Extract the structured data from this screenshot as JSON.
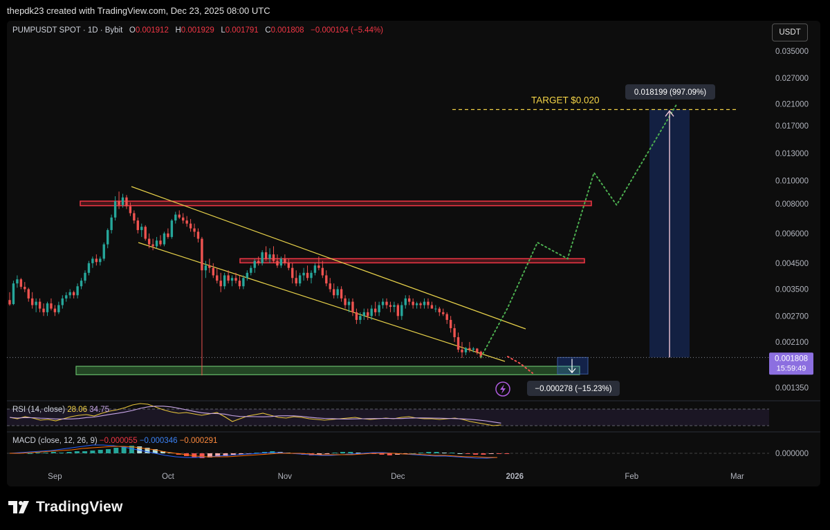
{
  "header": {
    "credit": "thepdk23 created with TradingView.com, Dec 23, 2025 08:00 UTC"
  },
  "legend": {
    "symbol": "PUMPUSDT SPOT · 1D · Bybit",
    "o_label": "O",
    "o": "0.001912",
    "h_label": "H",
    "h": "0.001929",
    "l_label": "L",
    "l": "0.001791",
    "c_label": "C",
    "c": "0.001808",
    "change": "−0.000104 (−5.44%)"
  },
  "currency_button": "USDT",
  "chart_data": {
    "type": "candlestick",
    "symbol": "PUMPUSDT",
    "interval": "1D",
    "exchange": "Bybit",
    "y_scale": "log",
    "y_ticks": [
      "0.035000",
      "0.027000",
      "0.021000",
      "0.017000",
      "0.013000",
      "0.010000",
      "0.008000",
      "0.006000",
      "0.004500",
      "0.003500",
      "0.002700",
      "0.002100",
      "0.001350"
    ],
    "x_ticks": [
      "Sep",
      "Oct",
      "Nov",
      "Dec",
      "2026",
      "Feb",
      "Mar"
    ],
    "last_price": {
      "value": "0.001808",
      "countdown": "15:59:49"
    },
    "annotations": {
      "target_label": "TARGET $0.020",
      "target_level": 0.0199,
      "gain_label": "0.018199 (997.09%)",
      "loss_label": "−0.000278 (−15.23%)",
      "resistance_zones": [
        [
          0.00785,
          0.0082
        ],
        [
          0.00455,
          0.0047
        ]
      ],
      "support_zone": [
        0.00153,
        0.00166
      ]
    },
    "candles": [
      {
        "date": "2025-08-20",
        "o": 0.00315,
        "h": 0.0034,
        "l": 0.00298,
        "c": 0.00302
      },
      {
        "date": "2025-08-21",
        "o": 0.00303,
        "h": 0.0038,
        "l": 0.003,
        "c": 0.0037
      },
      {
        "date": "2025-08-22",
        "o": 0.0037,
        "h": 0.004,
        "l": 0.00355,
        "c": 0.00385
      },
      {
        "date": "2025-08-23",
        "o": 0.00385,
        "h": 0.0039,
        "l": 0.0035,
        "c": 0.00358
      },
      {
        "date": "2025-08-24",
        "o": 0.00358,
        "h": 0.00375,
        "l": 0.0034,
        "c": 0.0035
      },
      {
        "date": "2025-08-25",
        "o": 0.0035,
        "h": 0.00355,
        "l": 0.0031,
        "c": 0.0032
      },
      {
        "date": "2025-08-26",
        "o": 0.0032,
        "h": 0.0034,
        "l": 0.0029,
        "c": 0.003
      },
      {
        "date": "2025-08-27",
        "o": 0.003,
        "h": 0.0032,
        "l": 0.0028,
        "c": 0.0031
      },
      {
        "date": "2025-08-28",
        "o": 0.0031,
        "h": 0.0032,
        "l": 0.0028,
        "c": 0.0029
      },
      {
        "date": "2025-08-29",
        "o": 0.0029,
        "h": 0.00305,
        "l": 0.0027,
        "c": 0.0028
      },
      {
        "date": "2025-08-30",
        "o": 0.0028,
        "h": 0.0031,
        "l": 0.0027,
        "c": 0.00305
      },
      {
        "date": "2025-08-31",
        "o": 0.00305,
        "h": 0.0032,
        "l": 0.00285,
        "c": 0.0029
      },
      {
        "date": "2025-09-01",
        "o": 0.0029,
        "h": 0.003,
        "l": 0.0027,
        "c": 0.0028
      },
      {
        "date": "2025-09-02",
        "o": 0.0028,
        "h": 0.0031,
        "l": 0.00275,
        "c": 0.003
      },
      {
        "date": "2025-09-03",
        "o": 0.003,
        "h": 0.0033,
        "l": 0.0029,
        "c": 0.0032
      },
      {
        "date": "2025-09-04",
        "o": 0.0032,
        "h": 0.0034,
        "l": 0.0031,
        "c": 0.0033
      },
      {
        "date": "2025-09-05",
        "o": 0.0033,
        "h": 0.0035,
        "l": 0.0032,
        "c": 0.0034
      },
      {
        "date": "2025-09-06",
        "o": 0.0034,
        "h": 0.00345,
        "l": 0.0032,
        "c": 0.0033
      },
      {
        "date": "2025-09-07",
        "o": 0.0033,
        "h": 0.0037,
        "l": 0.0032,
        "c": 0.0036
      },
      {
        "date": "2025-09-08",
        "o": 0.0036,
        "h": 0.0039,
        "l": 0.0035,
        "c": 0.0038
      },
      {
        "date": "2025-09-09",
        "o": 0.0038,
        "h": 0.0042,
        "l": 0.0037,
        "c": 0.0041
      },
      {
        "date": "2025-09-10",
        "o": 0.0041,
        "h": 0.0046,
        "l": 0.004,
        "c": 0.0045
      },
      {
        "date": "2025-09-11",
        "o": 0.0045,
        "h": 0.0048,
        "l": 0.0043,
        "c": 0.0047
      },
      {
        "date": "2025-09-12",
        "o": 0.0047,
        "h": 0.0049,
        "l": 0.0044,
        "c": 0.00455
      },
      {
        "date": "2025-09-13",
        "o": 0.00455,
        "h": 0.0048,
        "l": 0.0044,
        "c": 0.0047
      },
      {
        "date": "2025-09-14",
        "o": 0.0047,
        "h": 0.0055,
        "l": 0.0046,
        "c": 0.0054
      },
      {
        "date": "2025-09-15",
        "o": 0.0054,
        "h": 0.0063,
        "l": 0.0052,
        "c": 0.0062
      },
      {
        "date": "2025-09-16",
        "o": 0.0062,
        "h": 0.0072,
        "l": 0.006,
        "c": 0.007
      },
      {
        "date": "2025-09-17",
        "o": 0.007,
        "h": 0.0086,
        "l": 0.0068,
        "c": 0.0082
      },
      {
        "date": "2025-09-18",
        "o": 0.0082,
        "h": 0.009,
        "l": 0.0076,
        "c": 0.0079
      },
      {
        "date": "2025-09-19",
        "o": 0.0079,
        "h": 0.0088,
        "l": 0.0077,
        "c": 0.0085
      },
      {
        "date": "2025-09-20",
        "o": 0.0085,
        "h": 0.0087,
        "l": 0.0076,
        "c": 0.0078
      },
      {
        "date": "2025-09-21",
        "o": 0.0078,
        "h": 0.0081,
        "l": 0.0071,
        "c": 0.0073
      },
      {
        "date": "2025-09-22",
        "o": 0.0073,
        "h": 0.0075,
        "l": 0.0066,
        "c": 0.0068
      },
      {
        "date": "2025-09-23",
        "o": 0.0068,
        "h": 0.007,
        "l": 0.006,
        "c": 0.0062
      },
      {
        "date": "2025-09-24",
        "o": 0.0062,
        "h": 0.0066,
        "l": 0.0058,
        "c": 0.0064
      },
      {
        "date": "2025-09-25",
        "o": 0.0064,
        "h": 0.0065,
        "l": 0.0056,
        "c": 0.0057
      },
      {
        "date": "2025-09-26",
        "o": 0.0057,
        "h": 0.006,
        "l": 0.0052,
        "c": 0.0054
      },
      {
        "date": "2025-09-27",
        "o": 0.0054,
        "h": 0.0057,
        "l": 0.0051,
        "c": 0.0053
      },
      {
        "date": "2025-09-28",
        "o": 0.0053,
        "h": 0.0058,
        "l": 0.0052,
        "c": 0.0056
      },
      {
        "date": "2025-09-29",
        "o": 0.0056,
        "h": 0.0059,
        "l": 0.0053,
        "c": 0.0054
      },
      {
        "date": "2025-09-30",
        "o": 0.0054,
        "h": 0.0061,
        "l": 0.0053,
        "c": 0.006
      },
      {
        "date": "2025-10-01",
        "o": 0.006,
        "h": 0.0063,
        "l": 0.0057,
        "c": 0.0058
      },
      {
        "date": "2025-10-02",
        "o": 0.0058,
        "h": 0.0069,
        "l": 0.0057,
        "c": 0.0068
      },
      {
        "date": "2025-10-03",
        "o": 0.0068,
        "h": 0.0074,
        "l": 0.0066,
        "c": 0.0072
      },
      {
        "date": "2025-10-04",
        "o": 0.0072,
        "h": 0.0075,
        "l": 0.0069,
        "c": 0.007
      },
      {
        "date": "2025-10-05",
        "o": 0.007,
        "h": 0.0073,
        "l": 0.0066,
        "c": 0.0068
      },
      {
        "date": "2025-10-06",
        "o": 0.0068,
        "h": 0.0071,
        "l": 0.0064,
        "c": 0.0066
      },
      {
        "date": "2025-10-07",
        "o": 0.0066,
        "h": 0.0069,
        "l": 0.0061,
        "c": 0.0063
      },
      {
        "date": "2025-10-08",
        "o": 0.0063,
        "h": 0.0066,
        "l": 0.0058,
        "c": 0.0061
      },
      {
        "date": "2025-10-09",
        "o": 0.0061,
        "h": 0.0063,
        "l": 0.0055,
        "c": 0.0057
      },
      {
        "date": "2025-10-10",
        "o": 0.0057,
        "h": 0.0058,
        "l": 0.00152,
        "c": 0.0042
      },
      {
        "date": "2025-10-11",
        "o": 0.0042,
        "h": 0.0046,
        "l": 0.0039,
        "c": 0.0044
      },
      {
        "date": "2025-10-12",
        "o": 0.0044,
        "h": 0.0047,
        "l": 0.0041,
        "c": 0.0043
      },
      {
        "date": "2025-10-13",
        "o": 0.0043,
        "h": 0.0045,
        "l": 0.0039,
        "c": 0.004
      },
      {
        "date": "2025-10-14",
        "o": 0.004,
        "h": 0.0043,
        "l": 0.0037,
        "c": 0.0038
      },
      {
        "date": "2025-10-15",
        "o": 0.0038,
        "h": 0.0041,
        "l": 0.0034,
        "c": 0.0036
      },
      {
        "date": "2025-10-16",
        "o": 0.0036,
        "h": 0.0041,
        "l": 0.0035,
        "c": 0.004
      },
      {
        "date": "2025-10-17",
        "o": 0.004,
        "h": 0.0042,
        "l": 0.0037,
        "c": 0.0038
      },
      {
        "date": "2025-10-18",
        "o": 0.0038,
        "h": 0.004,
        "l": 0.0036,
        "c": 0.0039
      },
      {
        "date": "2025-10-19",
        "o": 0.0039,
        "h": 0.0041,
        "l": 0.0037,
        "c": 0.0038
      },
      {
        "date": "2025-10-20",
        "o": 0.0038,
        "h": 0.004,
        "l": 0.0035,
        "c": 0.0036
      },
      {
        "date": "2025-10-21",
        "o": 0.0036,
        "h": 0.004,
        "l": 0.0035,
        "c": 0.0039
      },
      {
        "date": "2025-10-22",
        "o": 0.0039,
        "h": 0.0042,
        "l": 0.0038,
        "c": 0.0041
      },
      {
        "date": "2025-10-23",
        "o": 0.0041,
        "h": 0.0044,
        "l": 0.004,
        "c": 0.0043
      },
      {
        "date": "2025-10-24",
        "o": 0.0043,
        "h": 0.0047,
        "l": 0.0041,
        "c": 0.0046
      },
      {
        "date": "2025-10-25",
        "o": 0.0046,
        "h": 0.0048,
        "l": 0.0044,
        "c": 0.0045
      },
      {
        "date": "2025-10-26",
        "o": 0.0045,
        "h": 0.0051,
        "l": 0.0044,
        "c": 0.005
      },
      {
        "date": "2025-10-27",
        "o": 0.005,
        "h": 0.0053,
        "l": 0.0046,
        "c": 0.0047
      },
      {
        "date": "2025-10-28",
        "o": 0.0047,
        "h": 0.0052,
        "l": 0.0045,
        "c": 0.0049
      },
      {
        "date": "2025-10-29",
        "o": 0.0049,
        "h": 0.0053,
        "l": 0.0045,
        "c": 0.0046
      },
      {
        "date": "2025-10-30",
        "o": 0.0046,
        "h": 0.0049,
        "l": 0.0043,
        "c": 0.0044
      },
      {
        "date": "2025-10-31",
        "o": 0.0044,
        "h": 0.0048,
        "l": 0.0043,
        "c": 0.0047
      },
      {
        "date": "2025-11-01",
        "o": 0.0047,
        "h": 0.0049,
        "l": 0.0044,
        "c": 0.0045
      },
      {
        "date": "2025-11-02",
        "o": 0.0045,
        "h": 0.0047,
        "l": 0.0042,
        "c": 0.0043
      },
      {
        "date": "2025-11-03",
        "o": 0.0043,
        "h": 0.0045,
        "l": 0.0037,
        "c": 0.0039
      },
      {
        "date": "2025-11-04",
        "o": 0.0039,
        "h": 0.0042,
        "l": 0.0036,
        "c": 0.0037
      },
      {
        "date": "2025-11-05",
        "o": 0.0037,
        "h": 0.0041,
        "l": 0.0036,
        "c": 0.004
      },
      {
        "date": "2025-11-06",
        "o": 0.004,
        "h": 0.0043,
        "l": 0.0038,
        "c": 0.0041
      },
      {
        "date": "2025-11-07",
        "o": 0.0041,
        "h": 0.0044,
        "l": 0.0038,
        "c": 0.0039
      },
      {
        "date": "2025-11-08",
        "o": 0.0039,
        "h": 0.0042,
        "l": 0.0037,
        "c": 0.0041
      },
      {
        "date": "2025-11-09",
        "o": 0.0041,
        "h": 0.0045,
        "l": 0.004,
        "c": 0.0044
      },
      {
        "date": "2025-11-10",
        "o": 0.0044,
        "h": 0.0048,
        "l": 0.0042,
        "c": 0.0043
      },
      {
        "date": "2025-11-11",
        "o": 0.0043,
        "h": 0.0046,
        "l": 0.0039,
        "c": 0.004
      },
      {
        "date": "2025-11-12",
        "o": 0.004,
        "h": 0.0042,
        "l": 0.0036,
        "c": 0.0037
      },
      {
        "date": "2025-11-13",
        "o": 0.0037,
        "h": 0.0039,
        "l": 0.0034,
        "c": 0.0035
      },
      {
        "date": "2025-11-14",
        "o": 0.0035,
        "h": 0.0037,
        "l": 0.0032,
        "c": 0.0033
      },
      {
        "date": "2025-11-15",
        "o": 0.0033,
        "h": 0.0036,
        "l": 0.0032,
        "c": 0.0035
      },
      {
        "date": "2025-11-16",
        "o": 0.0035,
        "h": 0.0036,
        "l": 0.0031,
        "c": 0.0032
      },
      {
        "date": "2025-11-17",
        "o": 0.0032,
        "h": 0.0033,
        "l": 0.0029,
        "c": 0.003
      },
      {
        "date": "2025-11-18",
        "o": 0.003,
        "h": 0.0032,
        "l": 0.0028,
        "c": 0.0031
      },
      {
        "date": "2025-11-19",
        "o": 0.0031,
        "h": 0.0032,
        "l": 0.0027,
        "c": 0.0028
      },
      {
        "date": "2025-11-20",
        "o": 0.0028,
        "h": 0.0029,
        "l": 0.0025,
        "c": 0.0026
      },
      {
        "date": "2025-11-21",
        "o": 0.0026,
        "h": 0.0028,
        "l": 0.0025,
        "c": 0.0027
      },
      {
        "date": "2025-11-22",
        "o": 0.0027,
        "h": 0.0029,
        "l": 0.0026,
        "c": 0.0028
      },
      {
        "date": "2025-11-23",
        "o": 0.0028,
        "h": 0.0029,
        "l": 0.0026,
        "c": 0.0027
      },
      {
        "date": "2025-11-24",
        "o": 0.0027,
        "h": 0.003,
        "l": 0.0026,
        "c": 0.0029
      },
      {
        "date": "2025-11-25",
        "o": 0.0029,
        "h": 0.0031,
        "l": 0.0027,
        "c": 0.0028
      },
      {
        "date": "2025-11-26",
        "o": 0.0028,
        "h": 0.0031,
        "l": 0.0027,
        "c": 0.003
      },
      {
        "date": "2025-11-27",
        "o": 0.003,
        "h": 0.0032,
        "l": 0.0029,
        "c": 0.0031
      },
      {
        "date": "2025-11-28",
        "o": 0.0031,
        "h": 0.0032,
        "l": 0.0029,
        "c": 0.003
      },
      {
        "date": "2025-11-29",
        "o": 0.003,
        "h": 0.0031,
        "l": 0.0028,
        "c": 0.00295
      },
      {
        "date": "2025-11-30",
        "o": 0.00295,
        "h": 0.0031,
        "l": 0.0028,
        "c": 0.003
      },
      {
        "date": "2025-12-01",
        "o": 0.003,
        "h": 0.00305,
        "l": 0.0026,
        "c": 0.0027
      },
      {
        "date": "2025-12-02",
        "o": 0.0027,
        "h": 0.0031,
        "l": 0.0026,
        "c": 0.003
      },
      {
        "date": "2025-12-03",
        "o": 0.003,
        "h": 0.0033,
        "l": 0.0029,
        "c": 0.0032
      },
      {
        "date": "2025-12-04",
        "o": 0.0032,
        "h": 0.0033,
        "l": 0.003,
        "c": 0.0031
      },
      {
        "date": "2025-12-05",
        "o": 0.0031,
        "h": 0.0032,
        "l": 0.0029,
        "c": 0.003
      },
      {
        "date": "2025-12-06",
        "o": 0.003,
        "h": 0.0031,
        "l": 0.0029,
        "c": 0.00305
      },
      {
        "date": "2025-12-07",
        "o": 0.00305,
        "h": 0.0031,
        "l": 0.0029,
        "c": 0.003
      },
      {
        "date": "2025-12-08",
        "o": 0.003,
        "h": 0.0032,
        "l": 0.0029,
        "c": 0.0031
      },
      {
        "date": "2025-12-09",
        "o": 0.0031,
        "h": 0.0032,
        "l": 0.0029,
        "c": 0.003
      },
      {
        "date": "2025-12-10",
        "o": 0.003,
        "h": 0.0031,
        "l": 0.0029,
        "c": 0.0029
      },
      {
        "date": "2025-12-11",
        "o": 0.0029,
        "h": 0.003,
        "l": 0.0028,
        "c": 0.0029
      },
      {
        "date": "2025-12-12",
        "o": 0.0029,
        "h": 0.00295,
        "l": 0.0027,
        "c": 0.0028
      },
      {
        "date": "2025-12-13",
        "o": 0.0028,
        "h": 0.0029,
        "l": 0.0027,
        "c": 0.00275
      },
      {
        "date": "2025-12-14",
        "o": 0.00275,
        "h": 0.0028,
        "l": 0.0025,
        "c": 0.0026
      },
      {
        "date": "2025-12-15",
        "o": 0.0026,
        "h": 0.0027,
        "l": 0.0023,
        "c": 0.0024
      },
      {
        "date": "2025-12-16",
        "o": 0.0024,
        "h": 0.0025,
        "l": 0.0021,
        "c": 0.0022
      },
      {
        "date": "2025-12-17",
        "o": 0.0022,
        "h": 0.0023,
        "l": 0.0019,
        "c": 0.00195
      },
      {
        "date": "2025-12-18",
        "o": 0.00195,
        "h": 0.0021,
        "l": 0.0018,
        "c": 0.0019
      },
      {
        "date": "2025-12-19",
        "o": 0.0019,
        "h": 0.002,
        "l": 0.00185,
        "c": 0.00198
      },
      {
        "date": "2025-12-20",
        "o": 0.00198,
        "h": 0.0021,
        "l": 0.0019,
        "c": 0.00195
      },
      {
        "date": "2025-12-21",
        "o": 0.00195,
        "h": 0.002,
        "l": 0.0019,
        "c": 0.00197
      },
      {
        "date": "2025-12-22",
        "o": 0.00197,
        "h": 0.00198,
        "l": 0.00186,
        "c": 0.0019
      },
      {
        "date": "2025-12-23",
        "o": 0.001912,
        "h": 0.001929,
        "l": 0.001791,
        "c": 0.001808
      }
    ],
    "projection_path": [
      {
        "date": "2025-12-23",
        "price": 0.00181
      },
      {
        "date": "2025-12-30",
        "price": 0.0029
      },
      {
        "date": "2026-01-07",
        "price": 0.0055
      },
      {
        "date": "2026-01-15",
        "price": 0.0047
      },
      {
        "date": "2026-01-22",
        "price": 0.0108
      },
      {
        "date": "2026-01-28",
        "price": 0.0079
      },
      {
        "date": "2026-02-13",
        "price": 0.021
      }
    ],
    "rsi": {
      "label": "RSI (14, close)",
      "value": "28.06",
      "ma": "34.75"
    },
    "macd": {
      "label": "MACD (close, 12, 26, 9)",
      "hist": "−0.000055",
      "macd": "−0.000346",
      "signal": "−0.000291",
      "zero_tick": "0.000000"
    }
  },
  "footer": {
    "brand": "TradingView"
  }
}
